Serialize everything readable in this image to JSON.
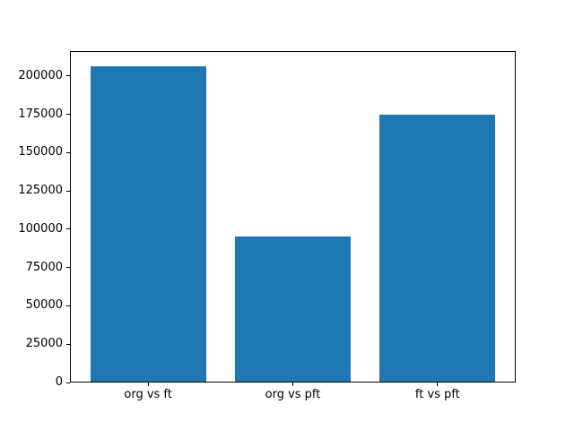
{
  "figure": {
    "background": "#ffffff"
  },
  "chart_data": {
    "type": "bar",
    "title": "",
    "xlabel": "",
    "ylabel": "",
    "categories": [
      "org vs ft",
      "org vs pft",
      "ft vs pft"
    ],
    "values": [
      206000,
      95000,
      174000
    ],
    "yticks": [
      0,
      25000,
      50000,
      75000,
      100000,
      125000,
      150000,
      175000,
      200000
    ],
    "ytick_labels": [
      "0",
      "25000",
      "50000",
      "75000",
      "100000",
      "125000",
      "150000",
      "175000",
      "200000"
    ],
    "ylim": [
      0,
      216300
    ],
    "xlim": [
      -0.54,
      2.54
    ],
    "bar_width": 0.8,
    "bar_color": "#1f77b4",
    "axis_color": "#000000",
    "grid": false,
    "legend": null
  }
}
